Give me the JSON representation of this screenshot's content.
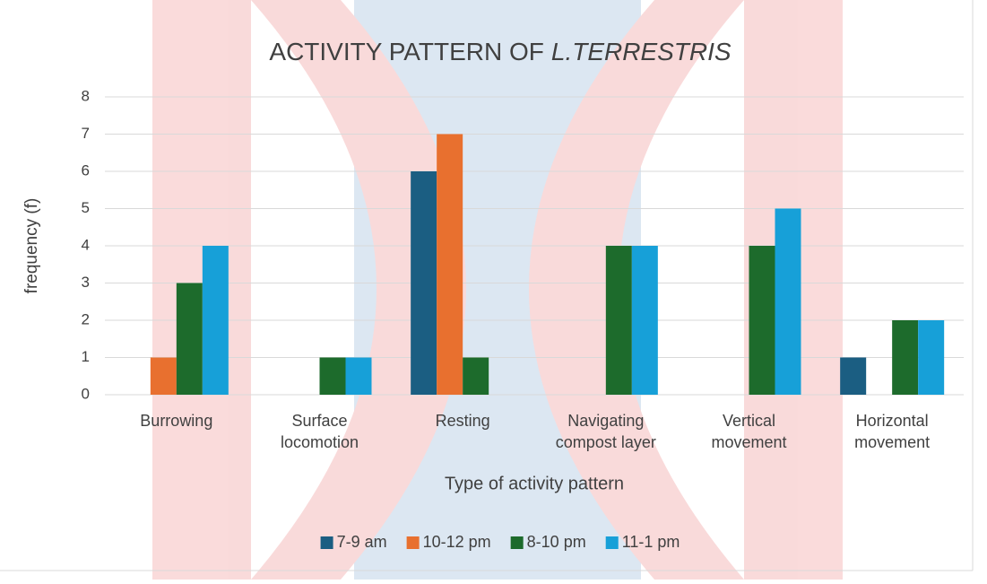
{
  "chart_data": {
    "type": "bar",
    "title": [
      "ACTIVITY PATTERN OF",
      "L.TERRESTRIS"
    ],
    "x_label": "Type of activity pattern",
    "y_label": "frequency (f)",
    "categories": [
      "Burrowing",
      "Surface\nlocomotion",
      "Resting",
      "Navigating\ncompost layer",
      "Vertical\nmovement",
      "Horizontal\nmovement"
    ],
    "series": [
      {
        "name": "7-9 am",
        "color": "#1b5e82",
        "values": [
          0,
          0,
          6,
          0,
          0,
          1
        ]
      },
      {
        "name": "10-12 pm",
        "color": "#e8702f",
        "values": [
          1,
          0,
          7,
          0,
          0,
          0
        ]
      },
      {
        "name": "8-10 pm",
        "color": "#1d6b2c",
        "values": [
          3,
          1,
          1,
          4,
          4,
          2
        ]
      },
      {
        "name": "11-1 pm",
        "color": "#17a0d8",
        "values": [
          4,
          1,
          0,
          4,
          5,
          2
        ]
      }
    ],
    "ylim": [
      0,
      8
    ],
    "yticks": [
      0,
      1,
      2,
      3,
      4,
      5,
      6,
      7,
      8
    ],
    "grid": true,
    "legend": "bottom"
  }
}
